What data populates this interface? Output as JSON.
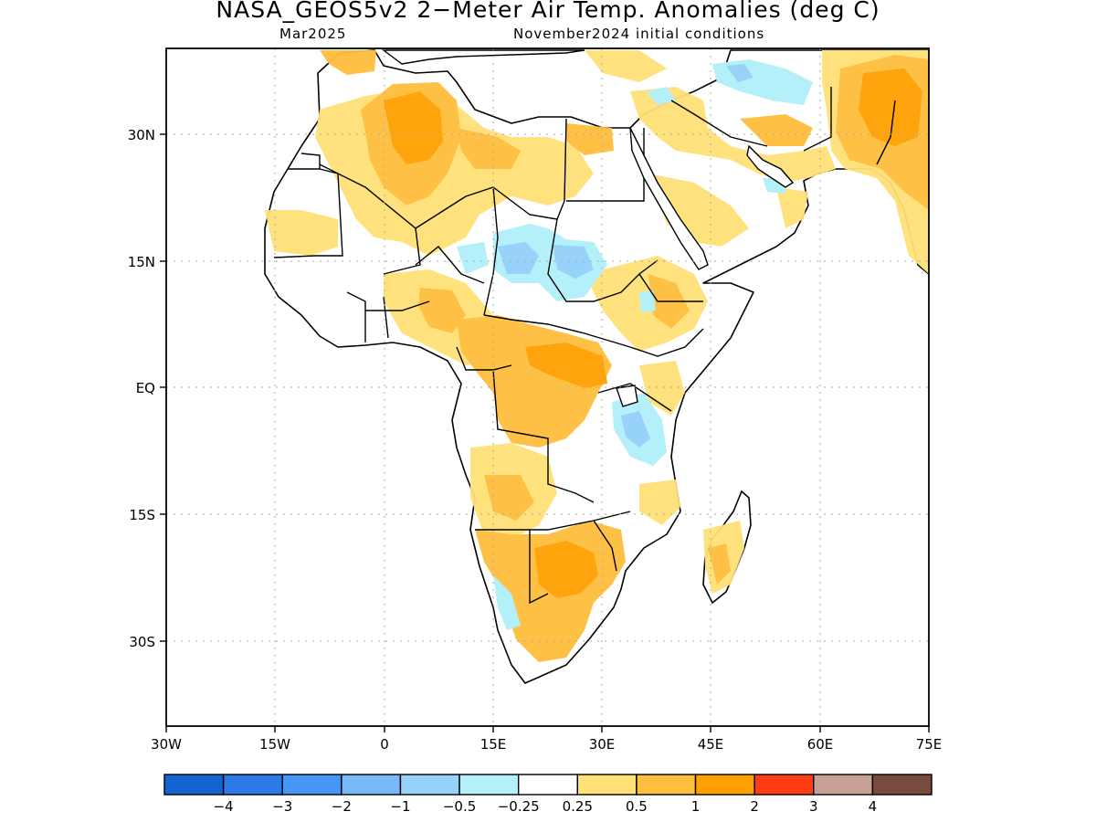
{
  "title": "NASA_GEOS5v2 2−Meter Air Temp. Anomalies (deg C)",
  "subtitle_left": "Mar2025",
  "subtitle_right": "November2024 initial conditions",
  "lon_ticks": [
    "30W",
    "15W",
    "0",
    "15E",
    "30E",
    "45E",
    "60E",
    "75E"
  ],
  "lat_ticks": [
    "30N",
    "15N",
    "EQ",
    "15S",
    "30S"
  ],
  "colorbar": {
    "colors": [
      "#1463d2",
      "#2c7ae8",
      "#4696f5",
      "#78b9fa",
      "#96d2fa",
      "#b4f0fa",
      "#ffffff",
      "#ffe178",
      "#ffbe3c",
      "#ffa000",
      "#ff3c14",
      "#c8a096",
      "#784b3c"
    ],
    "labels": [
      "−4",
      "−3",
      "−2",
      "−1",
      "−0.5",
      "−0.25",
      "0.25",
      "0.5",
      "1",
      "2",
      "3",
      "4"
    ]
  },
  "colors": {
    "land_outline": "#000000",
    "grid": "#aaaaaa"
  }
}
